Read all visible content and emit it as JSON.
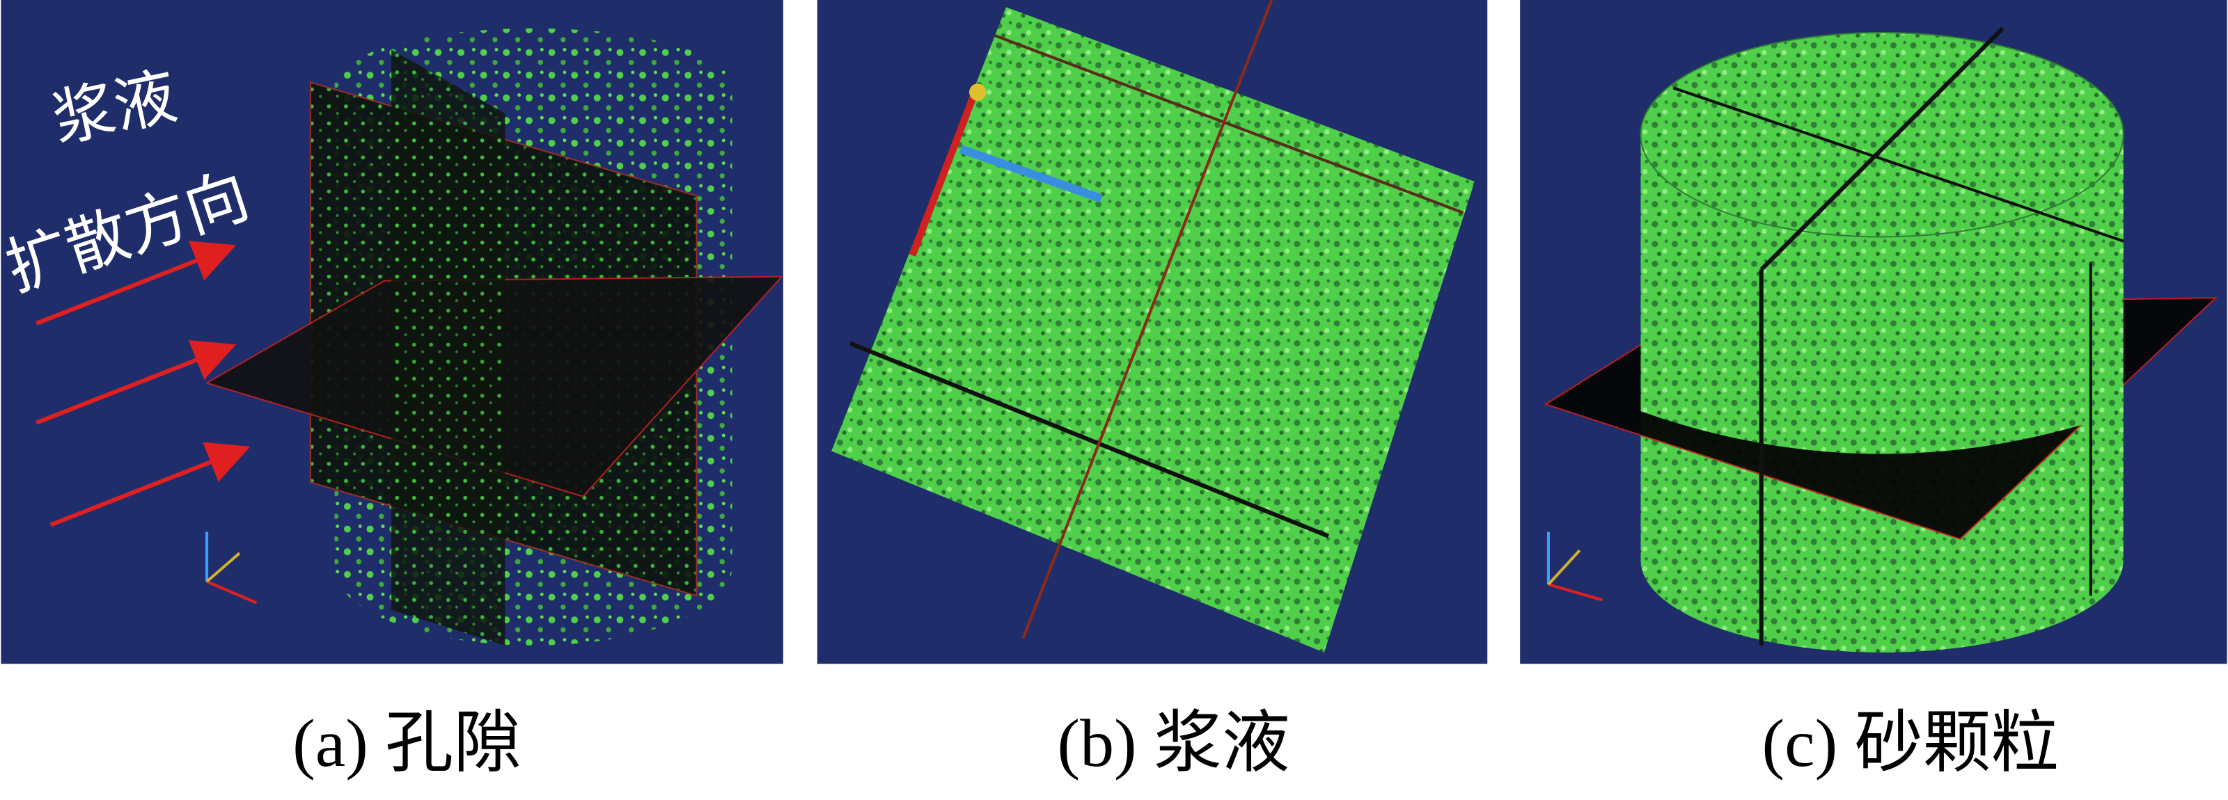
{
  "panels": [
    {
      "caption": "(a) 孔隙",
      "annotation": {
        "line1": "浆液",
        "line2": "扩散方向"
      }
    },
    {
      "caption": "(b) 浆液"
    },
    {
      "caption": "(c) 砂颗粒"
    }
  ]
}
